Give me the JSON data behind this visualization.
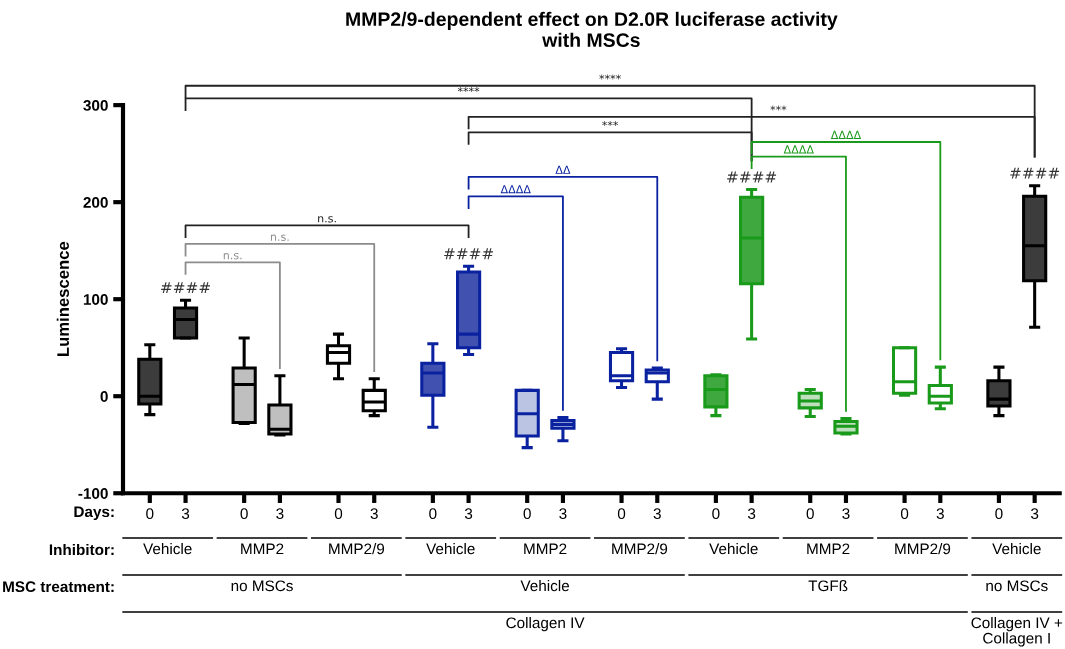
{
  "chart_data": {
    "type": "box",
    "title": "MMP2/9-dependent effect on D2.0R luciferase activity\nwith MSCs",
    "ylabel": "Luminescence",
    "ylim": [
      -100,
      300
    ],
    "yticks": [
      -100,
      0,
      100,
      200,
      300
    ],
    "categories": [
      "0",
      "3",
      "0",
      "3",
      "0",
      "3",
      "0",
      "3",
      "0",
      "3",
      "0",
      "3",
      "0",
      "3",
      "0",
      "3",
      "0",
      "3",
      "0",
      "3"
    ],
    "series": [
      {
        "color": "#000000",
        "colors": [
          "#3c3c3c",
          "#3c3c3c",
          "#bfbfbf",
          "#bfbfbf",
          "#ffffff",
          "#ffffff",
          null,
          null,
          null,
          null,
          null,
          null,
          null,
          null,
          null,
          null,
          null,
          null,
          "#3c3c3c",
          "#3c3c3c"
        ],
        "boxes": [
          {
            "low": -19,
            "q1": -8,
            "median": 0,
            "q3": 38,
            "high": 53
          },
          {
            "low": 60,
            "q1": 60,
            "median": 79,
            "q3": 91,
            "high": 99
          },
          {
            "low": -28,
            "q1": -27,
            "median": 12,
            "q3": 29,
            "high": 60
          },
          {
            "low": -40,
            "q1": -39,
            "median": -34,
            "q3": -9,
            "high": 21
          },
          {
            "low": 18,
            "q1": 34,
            "median": 45,
            "q3": 52,
            "high": 64
          },
          {
            "low": -20,
            "q1": -15,
            "median": -6,
            "q3": 6,
            "high": 18
          },
          null,
          null,
          null,
          null,
          null,
          null,
          null,
          null,
          null,
          null,
          null,
          null,
          {
            "low": -20,
            "q1": -10,
            "median": -3,
            "q3": 16,
            "high": 30
          },
          {
            "low": 71,
            "q1": 119,
            "median": 155,
            "q3": 206,
            "high": 217
          }
        ]
      },
      {
        "color": "#0a22a0",
        "colors": [
          null,
          null,
          null,
          null,
          null,
          null,
          "#4051b0",
          "#4051b0",
          "#bcc4e4",
          "#bcc4e4",
          "#ffffff",
          "#ffffff",
          null,
          null,
          null,
          null,
          null,
          null,
          null,
          null
        ],
        "boxes": [
          null,
          null,
          null,
          null,
          null,
          null,
          {
            "low": -32,
            "q1": 1,
            "median": 24,
            "q3": 34,
            "high": 54
          },
          {
            "low": 43,
            "q1": 50,
            "median": 64,
            "q3": 128,
            "high": 134
          },
          {
            "low": -53,
            "q1": -41,
            "median": -18,
            "q3": 6,
            "high": 6
          },
          {
            "low": -46,
            "q1": -33,
            "median": -29,
            "q3": -25,
            "high": -22
          },
          {
            "low": 9,
            "q1": 16,
            "median": 21,
            "q3": 45,
            "high": 49
          },
          {
            "low": -3,
            "q1": 15,
            "median": 24,
            "q3": 27,
            "high": 29
          },
          null,
          null,
          null,
          null,
          null,
          null,
          null,
          null
        ]
      },
      {
        "color": "#1a9a1a",
        "colors": [
          null,
          null,
          null,
          null,
          null,
          null,
          null,
          null,
          null,
          null,
          null,
          null,
          "#3fa83f",
          "#3fa83f",
          "#bfe0bf",
          "#bfe0bf",
          "#ffffff",
          "#ffffff",
          null,
          null
        ],
        "boxes": [
          null,
          null,
          null,
          null,
          null,
          null,
          null,
          null,
          null,
          null,
          null,
          null,
          {
            "low": -20,
            "q1": -11,
            "median": 7,
            "q3": 21,
            "high": 22
          },
          {
            "low": 59,
            "q1": 116,
            "median": 163,
            "q3": 205,
            "high": 213
          },
          {
            "low": -21,
            "q1": -12,
            "median": -5,
            "q3": 3,
            "high": 7
          },
          {
            "low": -39,
            "q1": -38,
            "median": -31,
            "q3": -26,
            "high": -23
          },
          {
            "low": 1,
            "q1": 3,
            "median": 15,
            "q3": 50,
            "high": 50
          },
          {
            "low": -13,
            "q1": -7,
            "median": 0,
            "q3": 11,
            "high": 30
          },
          null,
          null
        ]
      }
    ],
    "annotations": [
      "####",
      "####",
      "####",
      "####",
      "****",
      "****",
      "***",
      "***",
      "n.s.",
      "n.s.",
      "n.s.",
      "ΔΔΔΔ",
      "ΔΔ",
      "ΔΔΔΔ",
      "ΔΔΔΔ",
      "Days:",
      "Inhibitor:",
      "Vehicle",
      "MMP2",
      "MMP2/9",
      "Vehicle",
      "MMP2",
      "MMP2/9",
      "Vehicle",
      "MMP2",
      "MMP2/9",
      "Vehicle",
      "MSC treatment:",
      "no MSCs",
      "Vehicle",
      "TGFß",
      "no MSCs",
      "Collagen IV",
      "Collagen IV +\nCollagen I"
    ]
  }
}
